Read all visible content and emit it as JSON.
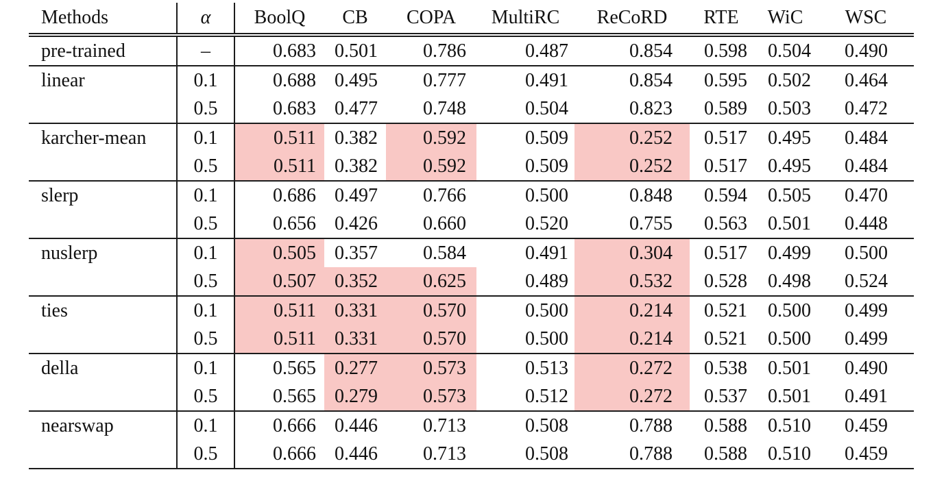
{
  "table": {
    "header": {
      "methods": "Methods",
      "alpha": "α",
      "benchmarks": [
        "BoolQ",
        "CB",
        "COPA",
        "MultiRC",
        "ReCoRD",
        "RTE",
        "WiC",
        "WSC"
      ]
    },
    "highlight_color": "#f9c8c5",
    "rows": [
      {
        "method": "pre-trained",
        "alpha": "–",
        "values": [
          "0.683",
          "0.501",
          "0.786",
          "0.487",
          "0.854",
          "0.598",
          "0.504",
          "0.490"
        ],
        "hl": [],
        "new_group": false
      },
      {
        "method": "linear",
        "alpha": "0.1",
        "values": [
          "0.688",
          "0.495",
          "0.777",
          "0.491",
          "0.854",
          "0.595",
          "0.502",
          "0.464"
        ],
        "hl": [],
        "new_group": true
      },
      {
        "method": "",
        "alpha": "0.5",
        "values": [
          "0.683",
          "0.477",
          "0.748",
          "0.504",
          "0.823",
          "0.589",
          "0.503",
          "0.472"
        ],
        "hl": [],
        "new_group": false
      },
      {
        "method": "karcher-mean",
        "alpha": "0.1",
        "values": [
          "0.511",
          "0.382",
          "0.592",
          "0.509",
          "0.252",
          "0.517",
          "0.495",
          "0.484"
        ],
        "hl": [
          0,
          2,
          4
        ],
        "new_group": true
      },
      {
        "method": "",
        "alpha": "0.5",
        "values": [
          "0.511",
          "0.382",
          "0.592",
          "0.509",
          "0.252",
          "0.517",
          "0.495",
          "0.484"
        ],
        "hl": [
          0,
          2,
          4
        ],
        "new_group": false
      },
      {
        "method": "slerp",
        "alpha": "0.1",
        "values": [
          "0.686",
          "0.497",
          "0.766",
          "0.500",
          "0.848",
          "0.594",
          "0.505",
          "0.470"
        ],
        "hl": [],
        "new_group": true
      },
      {
        "method": "",
        "alpha": "0.5",
        "values": [
          "0.656",
          "0.426",
          "0.660",
          "0.520",
          "0.755",
          "0.563",
          "0.501",
          "0.448"
        ],
        "hl": [],
        "new_group": false
      },
      {
        "method": "nuslerp",
        "alpha": "0.1",
        "values": [
          "0.505",
          "0.357",
          "0.584",
          "0.491",
          "0.304",
          "0.517",
          "0.499",
          "0.500"
        ],
        "hl": [
          0,
          4
        ],
        "new_group": true
      },
      {
        "method": "",
        "alpha": "0.5",
        "values": [
          "0.507",
          "0.352",
          "0.625",
          "0.489",
          "0.532",
          "0.528",
          "0.498",
          "0.524"
        ],
        "hl": [
          0,
          1,
          2,
          4
        ],
        "new_group": false
      },
      {
        "method": "ties",
        "alpha": "0.1",
        "values": [
          "0.511",
          "0.331",
          "0.570",
          "0.500",
          "0.214",
          "0.521",
          "0.500",
          "0.499"
        ],
        "hl": [
          0,
          1,
          2,
          4
        ],
        "new_group": true
      },
      {
        "method": "",
        "alpha": "0.5",
        "values": [
          "0.511",
          "0.331",
          "0.570",
          "0.500",
          "0.214",
          "0.521",
          "0.500",
          "0.499"
        ],
        "hl": [
          0,
          1,
          2,
          4
        ],
        "new_group": false
      },
      {
        "method": "della",
        "alpha": "0.1",
        "values": [
          "0.565",
          "0.277",
          "0.573",
          "0.513",
          "0.272",
          "0.538",
          "0.501",
          "0.490"
        ],
        "hl": [
          1,
          2,
          4
        ],
        "new_group": true
      },
      {
        "method": "",
        "alpha": "0.5",
        "values": [
          "0.565",
          "0.279",
          "0.573",
          "0.512",
          "0.272",
          "0.537",
          "0.501",
          "0.491"
        ],
        "hl": [
          1,
          2,
          4
        ],
        "new_group": false
      },
      {
        "method": "nearswap",
        "alpha": "0.1",
        "values": [
          "0.666",
          "0.446",
          "0.713",
          "0.508",
          "0.788",
          "0.588",
          "0.510",
          "0.459"
        ],
        "hl": [],
        "new_group": true
      },
      {
        "method": "",
        "alpha": "0.5",
        "values": [
          "0.666",
          "0.446",
          "0.713",
          "0.508",
          "0.788",
          "0.588",
          "0.510",
          "0.459"
        ],
        "hl": [],
        "new_group": false
      }
    ]
  }
}
